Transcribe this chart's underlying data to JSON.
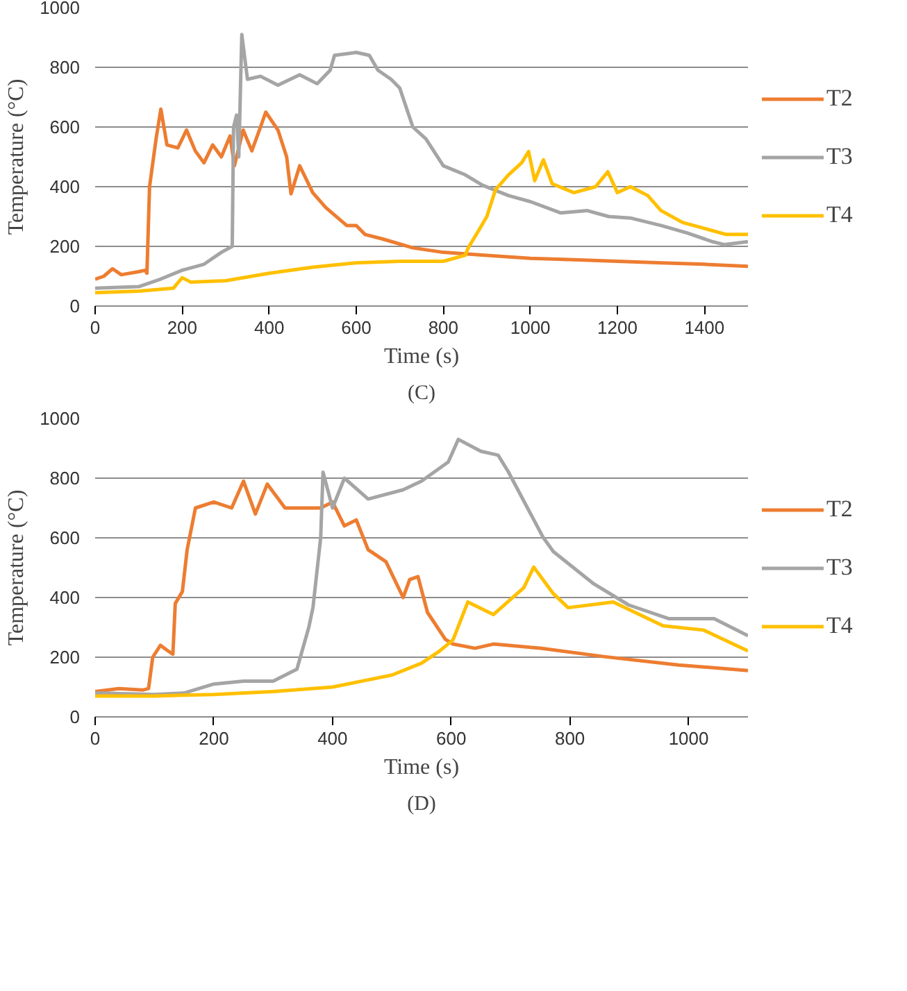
{
  "chart_data": [
    {
      "type": "line",
      "xlabel": "Time (s)",
      "ylabel": "Temperature (°C)",
      "annotations": [
        "(C)"
      ],
      "xlim": [
        0,
        1500
      ],
      "xticks": [
        0,
        200,
        400,
        600,
        800,
        1000,
        1200,
        1400
      ],
      "ylim": [
        0,
        1000
      ],
      "yticks": [
        0,
        200,
        400,
        600,
        800,
        1000
      ],
      "grid": "y",
      "legend": "right",
      "marker": "none",
      "line_style": "solid",
      "series": [
        {
          "name": "T2",
          "color": "#ed7d31",
          "x": [
            0,
            20,
            40,
            60,
            100,
            115,
            119,
            125,
            140,
            151,
            165,
            190,
            210,
            230,
            250,
            270,
            290,
            310,
            320,
            340,
            360,
            380,
            392,
            420,
            440,
            450,
            470,
            500,
            530,
            578,
            600,
            620,
            660,
            730,
            800,
            900,
            1000,
            1100,
            1200,
            1300,
            1400,
            1500
          ],
          "values": [
            90,
            100,
            125,
            105,
            115,
            120,
            110,
            400,
            560,
            660,
            540,
            530,
            590,
            520,
            480,
            540,
            500,
            570,
            470,
            590,
            520,
            600,
            650,
            590,
            500,
            376,
            470,
            380,
            330,
            270,
            270,
            240,
            225,
            195,
            180,
            170,
            160,
            155,
            150,
            145,
            140,
            133
          ]
        },
        {
          "name": "T3",
          "color": "#a5a5a5",
          "x": [
            0,
            100,
            150,
            200,
            250,
            290,
            315,
            318,
            325,
            330,
            337,
            350,
            380,
            420,
            470,
            510,
            540,
            550,
            600,
            630,
            650,
            680,
            700,
            730,
            760,
            800,
            850,
            890,
            950,
            1000,
            1070,
            1130,
            1180,
            1230,
            1300,
            1360,
            1420,
            1445,
            1500
          ],
          "values": [
            60,
            65,
            90,
            120,
            140,
            180,
            200,
            600,
            640,
            500,
            910,
            760,
            770,
            740,
            775,
            745,
            790,
            840,
            850,
            840,
            790,
            760,
            730,
            600,
            560,
            470,
            440,
            405,
            370,
            350,
            312,
            320,
            300,
            295,
            270,
            245,
            215,
            206,
            216
          ]
        },
        {
          "name": "T4",
          "color": "#ffc000",
          "x": [
            0,
            100,
            180,
            200,
            220,
            300,
            400,
            500,
            600,
            700,
            800,
            850,
            858,
            880,
            900,
            920,
            950,
            980,
            996,
            1010,
            1030,
            1050,
            1100,
            1150,
            1178,
            1200,
            1230,
            1270,
            1300,
            1350,
            1400,
            1450,
            1500
          ],
          "values": [
            45,
            50,
            60,
            95,
            80,
            85,
            110,
            130,
            145,
            150,
            150,
            170,
            197,
            250,
            300,
            390,
            440,
            480,
            518,
            420,
            490,
            410,
            380,
            400,
            450,
            380,
            400,
            370,
            320,
            280,
            260,
            240,
            240
          ]
        }
      ]
    },
    {
      "type": "line",
      "xlabel": "Time (s)",
      "ylabel": "Temperature (°C)",
      "annotations": [
        "(D)"
      ],
      "xlim": [
        0,
        1100
      ],
      "xticks": [
        0,
        200,
        400,
        600,
        800,
        1000
      ],
      "ylim": [
        0,
        1000
      ],
      "yticks": [
        0,
        200,
        400,
        600,
        800,
        1000
      ],
      "grid": "y",
      "legend": "right",
      "marker": "none",
      "line_style": "solid",
      "series": [
        {
          "name": "T2",
          "color": "#ed7d31",
          "x": [
            0,
            40,
            80,
            90,
            97,
            110,
            120,
            131,
            135,
            147,
            155,
            169,
            200,
            230,
            250,
            270,
            290,
            320,
            350,
            380,
            400,
            420,
            440,
            460,
            490,
            519,
            530,
            544,
            560,
            590,
            603,
            640,
            671,
            750,
            857,
            983,
            1100
          ],
          "values": [
            85,
            95,
            90,
            95,
            200,
            240,
            225,
            210,
            380,
            420,
            560,
            700,
            720,
            700,
            790,
            680,
            780,
            700,
            700,
            700,
            720,
            640,
            660,
            560,
            520,
            400,
            460,
            470,
            350,
            260,
            244,
            230,
            244,
            230,
            202,
            174,
            155
          ]
        },
        {
          "name": "T3",
          "color": "#a5a5a5",
          "x": [
            0,
            100,
            150,
            200,
            250,
            300,
            340,
            360,
            367,
            380,
            384,
            400,
            420,
            460,
            519,
            550,
            595,
            612,
            650,
            679,
            696,
            755,
            772,
            840,
            899,
            967,
            1043,
            1100
          ],
          "values": [
            80,
            75,
            80,
            110,
            120,
            120,
            160,
            300,
            366,
            600,
            820,
            700,
            800,
            730,
            761,
            790,
            854,
            930,
            890,
            877,
            822,
            601,
            554,
            446,
            375,
            329,
            329,
            272
          ]
        },
        {
          "name": "T4",
          "color": "#ffc000",
          "x": [
            0,
            100,
            200,
            300,
            400,
            450,
            500,
            550,
            580,
            603,
            628,
            671,
            722,
            739,
            772,
            797,
            873,
            957,
            1025,
            1100
          ],
          "values": [
            70,
            70,
            75,
            85,
            100,
            120,
            140,
            180,
            220,
            258,
            385,
            343,
            432,
            502,
            413,
            366,
            385,
            305,
            291,
            221
          ]
        }
      ]
    }
  ]
}
